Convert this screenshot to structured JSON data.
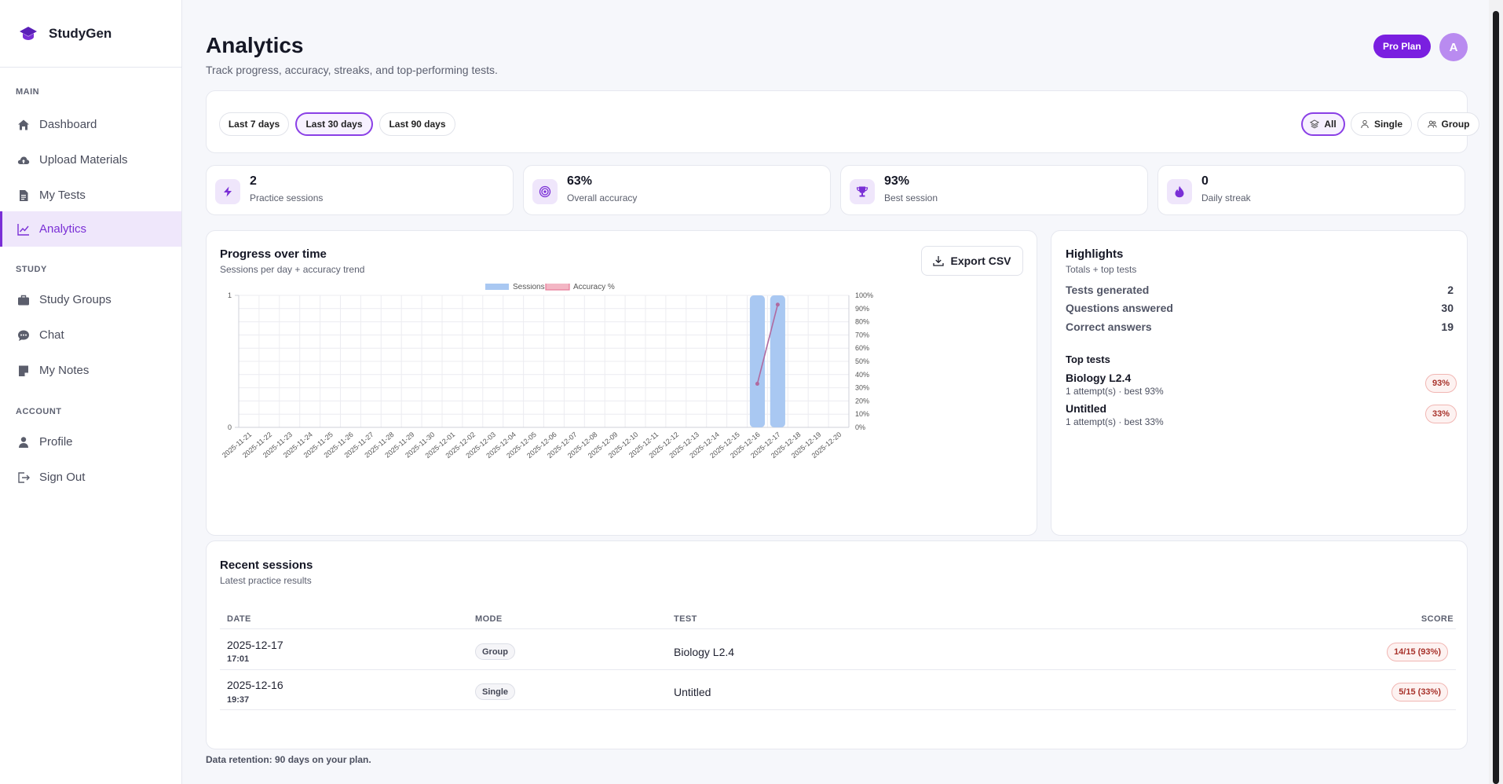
{
  "brand": {
    "name": "StudyGen"
  },
  "sidebar": {
    "sections": [
      {
        "title": "MAIN",
        "items": [
          {
            "label": "Dashboard",
            "icon": "home-icon"
          },
          {
            "label": "Upload Materials",
            "icon": "cloud-upload-icon"
          },
          {
            "label": "My Tests",
            "icon": "document-icon"
          },
          {
            "label": "Analytics",
            "icon": "chart-line-icon",
            "active": true
          }
        ]
      },
      {
        "title": "STUDY",
        "items": [
          {
            "label": "Study Groups",
            "icon": "briefcase-icon"
          },
          {
            "label": "Chat",
            "icon": "chat-icon"
          },
          {
            "label": "My Notes",
            "icon": "note-icon"
          }
        ]
      },
      {
        "title": "ACCOUNT",
        "items": [
          {
            "label": "Profile",
            "icon": "user-icon"
          },
          {
            "label": "Sign Out",
            "icon": "sign-out-icon"
          }
        ]
      }
    ]
  },
  "header": {
    "title": "Analytics",
    "subtitle": "Track progress, accuracy, streaks, and top-performing tests.",
    "plan_badge": "Pro Plan",
    "avatar_initial": "A"
  },
  "filters": {
    "ranges": [
      "Last 7 days",
      "Last 30 days",
      "Last 90 days"
    ],
    "selected_range": "Last 30 days",
    "modes": [
      "All",
      "Single",
      "Group"
    ],
    "selected_mode": "All"
  },
  "stats": [
    {
      "value": "2",
      "label": "Practice sessions",
      "icon": "bolt-icon"
    },
    {
      "value": "63%",
      "label": "Overall accuracy",
      "icon": "target-icon"
    },
    {
      "value": "93%",
      "label": "Best session",
      "icon": "trophy-icon"
    },
    {
      "value": "0",
      "label": "Daily streak",
      "icon": "flame-icon"
    }
  ],
  "progress": {
    "title": "Progress over time",
    "subtitle": "Sessions per day + accuracy trend",
    "export_label": "Export CSV"
  },
  "chart_data": {
    "type": "bar",
    "categories": [
      "2025-11-21",
      "2025-11-22",
      "2025-11-23",
      "2025-11-24",
      "2025-11-25",
      "2025-11-26",
      "2025-11-27",
      "2025-11-28",
      "2025-11-29",
      "2025-11-30",
      "2025-12-01",
      "2025-12-02",
      "2025-12-03",
      "2025-12-04",
      "2025-12-05",
      "2025-12-06",
      "2025-12-07",
      "2025-12-08",
      "2025-12-09",
      "2025-12-10",
      "2025-12-11",
      "2025-12-12",
      "2025-12-13",
      "2025-12-14",
      "2025-12-15",
      "2025-12-16",
      "2025-12-17",
      "2025-12-18",
      "2025-12-19",
      "2025-12-20"
    ],
    "series": [
      {
        "name": "Sessions",
        "type": "bar",
        "axis": "left",
        "color": "#a9c8f2",
        "values": [
          0,
          0,
          0,
          0,
          0,
          0,
          0,
          0,
          0,
          0,
          0,
          0,
          0,
          0,
          0,
          0,
          0,
          0,
          0,
          0,
          0,
          0,
          0,
          0,
          0,
          1,
          1,
          0,
          0,
          0
        ]
      },
      {
        "name": "Accuracy %",
        "type": "line",
        "axis": "right",
        "color": "#e67a98",
        "values": [
          null,
          null,
          null,
          null,
          null,
          null,
          null,
          null,
          null,
          null,
          null,
          null,
          null,
          null,
          null,
          null,
          null,
          null,
          null,
          null,
          null,
          null,
          null,
          null,
          null,
          33,
          93,
          null,
          null,
          null
        ]
      }
    ],
    "y_left": {
      "min": 0,
      "max": 1,
      "ticks": [
        "0",
        "1"
      ]
    },
    "y_right": {
      "min": 0,
      "max": 100,
      "ticks": [
        "0%",
        "10%",
        "20%",
        "30%",
        "40%",
        "50%",
        "60%",
        "70%",
        "80%",
        "90%",
        "100%"
      ]
    },
    "legend_position": "top-center",
    "grid": true
  },
  "highlights": {
    "title": "Highlights",
    "subtitle": "Totals + top tests",
    "rows": [
      {
        "label": "Tests generated",
        "value": "2"
      },
      {
        "label": "Questions answered",
        "value": "30"
      },
      {
        "label": "Correct answers",
        "value": "19"
      }
    ],
    "top_title": "Top tests",
    "top_tests": [
      {
        "name": "Biology L2.4",
        "meta": "1 attempt(s) · best 93%",
        "score": "93%"
      },
      {
        "name": "Untitled",
        "meta": "1 attempt(s) · best 33%",
        "score": "33%"
      }
    ]
  },
  "recent": {
    "title": "Recent sessions",
    "subtitle": "Latest practice results",
    "columns": [
      "DATE",
      "MODE",
      "TEST",
      "SCORE"
    ],
    "rows": [
      {
        "date": "2025-12-17",
        "time": "17:01",
        "mode": "Group",
        "test": "Biology L2.4",
        "score": "14/15 (93%)"
      },
      {
        "date": "2025-12-16",
        "time": "19:37",
        "mode": "Single",
        "test": "Untitled",
        "score": "5/15 (33%)"
      }
    ]
  },
  "footer": {
    "note": "Data retention: 90 days on your plan."
  }
}
